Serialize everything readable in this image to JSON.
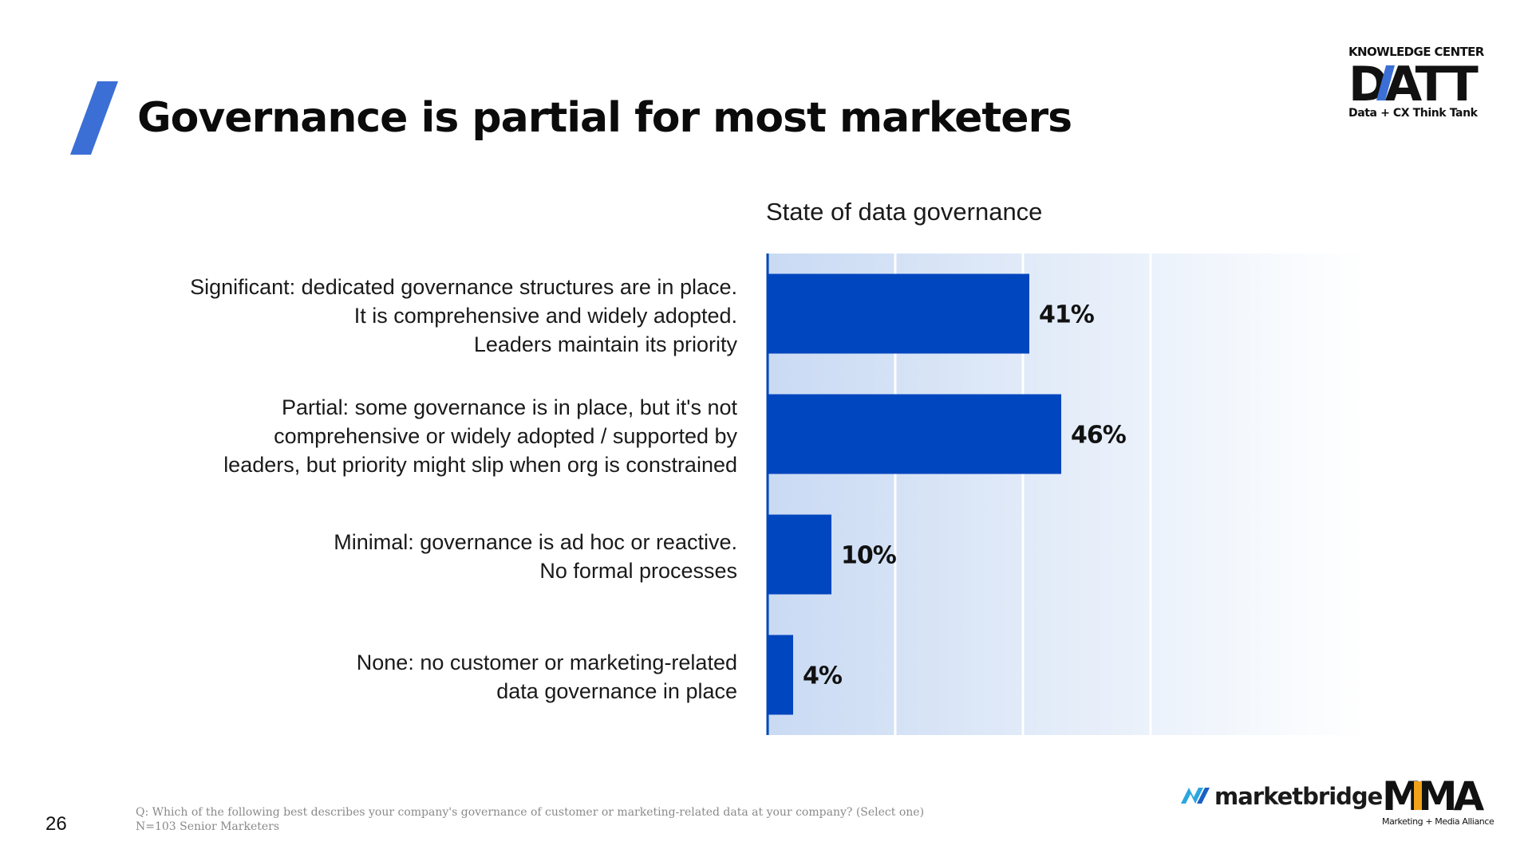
{
  "slide": {
    "title": "Governance is partial for most marketers",
    "page_number": "26",
    "accent_color": "#3b6fd6",
    "bar_color": "#0046be"
  },
  "brand": {
    "top_line": "KNOWLEDGE CENTER",
    "logo_text": "DATT",
    "tagline": "Data + CX Think Tank"
  },
  "footnote": {
    "question": "Q: Which of the following best describes your company's governance of customer or marketing-related data at your company? (Select one)",
    "sample": "N=103 Senior Marketers"
  },
  "partners": {
    "marketbridge": "marketbridge",
    "mma_logo": "MMA",
    "mma_subtitle": "Marketing + Media Alliance"
  },
  "chart_data": {
    "type": "bar",
    "orientation": "horizontal",
    "title": "State of data governance",
    "categories": [
      [
        "Significant: dedicated governance structures are in place.",
        "It is comprehensive and widely adopted.",
        "Leaders maintain its priority"
      ],
      [
        "Partial: some governance is in place, but it's not",
        "comprehensive or widely adopted / supported by",
        "leaders, but priority might slip when org is constrained"
      ],
      [
        "Minimal: governance is ad hoc or reactive.",
        "No formal processes"
      ],
      [
        "None: no customer or marketing-related",
        "data governance in place"
      ]
    ],
    "values": [
      41,
      46,
      10,
      4
    ],
    "value_labels": [
      "41%",
      "46%",
      "10%",
      "4%"
    ],
    "xlim": [
      0,
      100
    ],
    "grid": true,
    "axis_labels_shown": false,
    "bar_color": "#0046be"
  }
}
